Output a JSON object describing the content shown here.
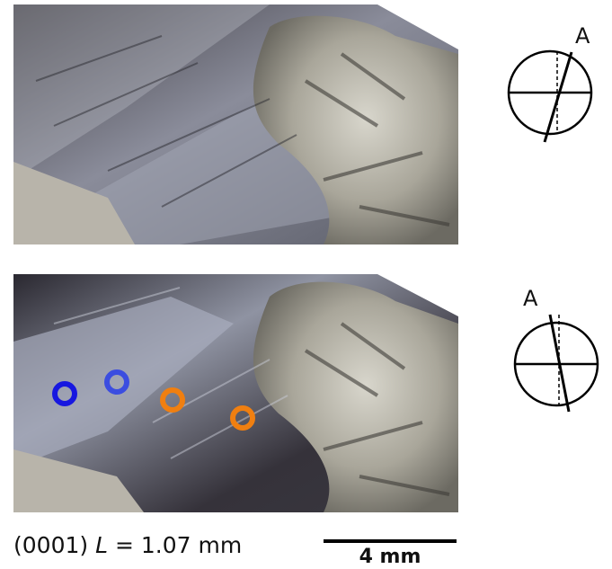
{
  "panels": [
    {
      "axis_label": "A"
    },
    {
      "axis_label": "A"
    }
  ],
  "caption": {
    "prefix": "(0001) ",
    "variable": "L",
    "suffix": " = 1.07 mm"
  },
  "scale_bar": {
    "label": "4 mm"
  }
}
